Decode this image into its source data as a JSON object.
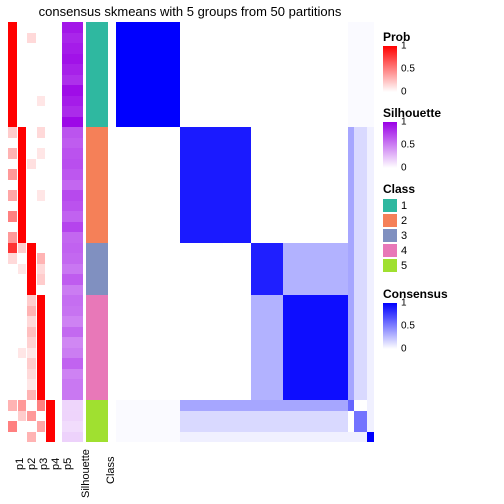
{
  "title": "consensus skmeans with 5 groups from 50 partitions",
  "n_samples": 40,
  "colors": {
    "white": "#ffffff",
    "prob_high": "#ff0000",
    "prob_mid": "#ffb0a0",
    "prob_low": "#ffe8e0",
    "sil_high": "#9a00e6",
    "sil_mid": "#c080e8",
    "sil_low": "#eed8f7",
    "class1": "#2fb8a0",
    "class2": "#f58058",
    "class3": "#8090c0",
    "class4": "#e878b8",
    "class5": "#a0e030",
    "cons_high": "#0000ff",
    "cons_mid": "#6060ff",
    "cons_low": "#c0c0f8",
    "cons_vlow": "#ece8fc"
  },
  "groups": [
    {
      "count": 10,
      "class": 1,
      "p": [
        1,
        0,
        0,
        0,
        0
      ],
      "sil": 1.0
    },
    {
      "count": 11,
      "class": 2,
      "p": [
        0,
        1,
        0,
        0,
        0
      ],
      "sil": 0.75
    },
    {
      "count": 5,
      "class": 3,
      "p": [
        0,
        0,
        1,
        0,
        0
      ],
      "sil": 0.65
    },
    {
      "count": 10,
      "class": 4,
      "p": [
        0,
        0,
        0,
        1,
        0
      ],
      "sil": 0.6
    },
    {
      "count": 4,
      "class": 5,
      "p": [
        0,
        0,
        0,
        0,
        1
      ],
      "sil": 0.35
    }
  ],
  "p_variation": {
    "1": {
      "p2": [
        0,
        0,
        0,
        0,
        0,
        0,
        0,
        0,
        0,
        0
      ],
      "p3": [
        0,
        0.15,
        0,
        0,
        0,
        0,
        0,
        0,
        0,
        0
      ],
      "p4": [
        0,
        0,
        0,
        0,
        0,
        0,
        0,
        0.1,
        0,
        0
      ],
      "p5": [
        0,
        0,
        0,
        0,
        0,
        0,
        0,
        0,
        0,
        0
      ]
    },
    "2": {
      "p1": [
        0.2,
        0,
        0.3,
        0,
        0.4,
        0,
        0.35,
        0,
        0.5,
        0,
        0.4
      ],
      "p3": [
        0,
        0,
        0,
        0.12,
        0,
        0,
        0,
        0,
        0,
        0,
        0
      ],
      "p4": [
        0.15,
        0,
        0.1,
        0,
        0,
        0,
        0.1,
        0,
        0,
        0,
        0
      ],
      "p5": [
        0,
        0,
        0,
        0,
        0,
        0,
        0,
        0,
        0,
        0,
        0
      ]
    },
    "3": {
      "p1": [
        0.8,
        0.15,
        0,
        0,
        0
      ],
      "p2": [
        0.2,
        0,
        0.1,
        0,
        0
      ],
      "p4": [
        0,
        0.3,
        0.15,
        0.2,
        0
      ],
      "p5": [
        0,
        0,
        0,
        0,
        0
      ]
    },
    "4": {
      "p1": [
        0,
        0,
        0,
        0,
        0,
        0,
        0,
        0,
        0,
        0
      ],
      "p2": [
        0,
        0,
        0,
        0,
        0,
        0.1,
        0,
        0,
        0,
        0
      ],
      "p3": [
        0.2,
        0.3,
        0.15,
        0.25,
        0.18,
        0.1,
        0.2,
        0.15,
        0.1,
        0.3
      ],
      "p5": [
        0,
        0,
        0,
        0,
        0,
        0,
        0,
        0,
        0,
        0
      ]
    },
    "5": {
      "p1": [
        0.3,
        0,
        0.5,
        0
      ],
      "p2": [
        0.4,
        0.2,
        0,
        0
      ],
      "p3": [
        0,
        0.4,
        0,
        0.3
      ],
      "p4": [
        0.5,
        0,
        0.35,
        0
      ]
    }
  },
  "consensus_blocks": [
    {
      "rs": 0,
      "re": 10,
      "cs": 0,
      "ce": 10,
      "v": 1.0
    },
    {
      "rs": 10,
      "re": 21,
      "cs": 10,
      "ce": 21,
      "v": 0.9
    },
    {
      "rs": 10,
      "re": 14,
      "cs": 14,
      "ce": 21,
      "v": 0.7
    },
    {
      "rs": 14,
      "re": 21,
      "cs": 10,
      "ce": 14,
      "v": 0.7
    },
    {
      "rs": 21,
      "re": 26,
      "cs": 21,
      "ce": 26,
      "v": 0.88
    },
    {
      "rs": 21,
      "re": 26,
      "cs": 26,
      "ce": 36,
      "v": 0.3
    },
    {
      "rs": 26,
      "re": 36,
      "cs": 21,
      "ce": 26,
      "v": 0.3
    },
    {
      "rs": 26,
      "re": 36,
      "cs": 26,
      "ce": 36,
      "v": 0.95
    },
    {
      "rs": 26,
      "re": 30,
      "cs": 30,
      "ce": 36,
      "v": 0.7
    },
    {
      "rs": 30,
      "re": 36,
      "cs": 26,
      "ce": 30,
      "v": 0.7
    },
    {
      "rs": 36,
      "re": 37,
      "cs": 10,
      "ce": 36,
      "v": 0.35
    },
    {
      "rs": 36,
      "re": 37,
      "cs": 36,
      "ce": 37,
      "v": 0.6
    },
    {
      "rs": 37,
      "re": 39,
      "cs": 37,
      "ce": 39,
      "v": 0.55
    },
    {
      "rs": 36,
      "re": 40,
      "cs": 0,
      "ce": 10,
      "v": 0.02
    },
    {
      "rs": 37,
      "re": 39,
      "cs": 10,
      "ce": 36,
      "v": 0.15
    },
    {
      "rs": 39,
      "re": 40,
      "cs": 39,
      "ce": 40,
      "v": 1.0
    },
    {
      "rs": 39,
      "re": 40,
      "cs": 10,
      "ce": 39,
      "v": 0.06
    },
    {
      "rs": 10,
      "re": 39,
      "cs": 39,
      "ce": 40,
      "v": 0.06
    }
  ],
  "axis_labels": {
    "p": [
      "p1",
      "p2",
      "p3",
      "p4",
      "p5"
    ],
    "sil": "Silhouette",
    "class": "Class"
  },
  "legends": {
    "prob": {
      "title": "Prob",
      "ticks": [
        {
          "v": 1,
          "l": "1"
        },
        {
          "v": 0.5,
          "l": "0.5"
        },
        {
          "v": 0,
          "l": "0"
        }
      ],
      "gradient": [
        "#ff0000",
        "#ffffff"
      ]
    },
    "sil": {
      "title": "Silhouette",
      "ticks": [
        {
          "v": 1,
          "l": "1"
        },
        {
          "v": 0.5,
          "l": "0.5"
        },
        {
          "v": 0,
          "l": "0"
        }
      ],
      "gradient": [
        "#9a00e6",
        "#ffffff"
      ]
    },
    "class": {
      "title": "Class",
      "items": [
        {
          "l": "1",
          "c": "#2fb8a0"
        },
        {
          "l": "2",
          "c": "#f58058"
        },
        {
          "l": "3",
          "c": "#8090c0"
        },
        {
          "l": "4",
          "c": "#e878b8"
        },
        {
          "l": "5",
          "c": "#a0e030"
        }
      ]
    },
    "cons": {
      "title": "Consensus",
      "ticks": [
        {
          "v": 1,
          "l": "1"
        },
        {
          "v": 0.5,
          "l": "0.5"
        },
        {
          "v": 0,
          "l": "0"
        }
      ],
      "gradient": [
        "#0000ff",
        "#ffffff"
      ]
    }
  }
}
